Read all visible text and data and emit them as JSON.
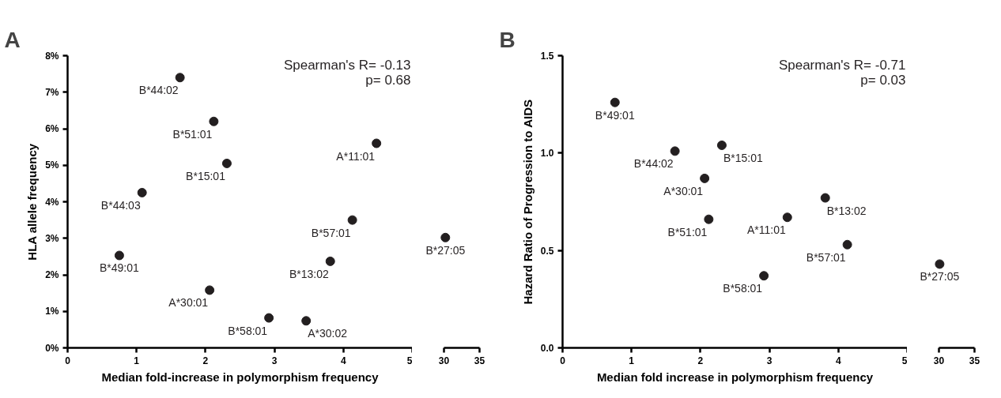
{
  "chart_data": [
    {
      "type": "scatter",
      "title": "A",
      "xlabel": "Median fold-increase in polymorphism frequency",
      "ylabel": "HLA allele frequency",
      "marker": "circle",
      "xlim": [
        0,
        5
      ],
      "ylim": [
        0,
        8
      ],
      "xticks": [
        0,
        1,
        2,
        3,
        4,
        5
      ],
      "yticks": [
        {
          "value": 0,
          "label": "0%"
        },
        {
          "value": 1,
          "label": "1%"
        },
        {
          "value": 2,
          "label": "2%"
        },
        {
          "value": 3,
          "label": "3%"
        },
        {
          "value": 4,
          "label": "4%"
        },
        {
          "value": 5,
          "label": "5%"
        },
        {
          "value": 6,
          "label": "6%"
        },
        {
          "value": 7,
          "label": "7%"
        },
        {
          "value": 8,
          "label": "8%"
        }
      ],
      "series": [
        {
          "color": "#231f20",
          "x": [
            1.63,
            2.12,
            2.31,
            4.48,
            1.08,
            4.13,
            0.75,
            3.81,
            2.06,
            2.92,
            3.46
          ],
          "values": [
            7.4,
            6.2,
            5.05,
            5.6,
            4.25,
            3.5,
            2.53,
            2.37,
            1.58,
            0.82,
            0.74
          ]
        }
      ],
      "annotations": [
        "Spearman's R= -0.13",
        "p= 0.68",
        {
          "text": "B*44:02",
          "x": 1.63,
          "y": 7.4
        },
        {
          "text": "B*51:01",
          "x": 2.12,
          "y": 6.2
        },
        {
          "text": "B*15:01",
          "x": 2.31,
          "y": 5.05
        },
        {
          "text": "A*11:01",
          "x": 4.48,
          "y": 5.6
        },
        {
          "text": "B*44:03",
          "x": 1.08,
          "y": 4.25
        },
        {
          "text": "B*57:01",
          "x": 4.13,
          "y": 3.5
        },
        {
          "text": "B*49:01",
          "x": 0.75,
          "y": 2.53
        },
        {
          "text": "B*13:02",
          "x": 3.81,
          "y": 2.37
        },
        {
          "text": "A*30:01",
          "x": 2.06,
          "y": 1.58
        },
        {
          "text": "B*58:01",
          "x": 2.92,
          "y": 0.82
        },
        {
          "text": "A*30:02",
          "x": 3.46,
          "y": 0.74
        }
      ]
    },
    {
      "type": "scatter",
      "tick_labels": "x",
      "marker": "circle",
      "xlim": [
        30,
        35
      ],
      "ylim": [
        0,
        8
      ],
      "xticks": [
        30,
        35
      ],
      "series": [
        {
          "color": "#231f20",
          "x": [
            30.2
          ],
          "values": [
            3.02
          ]
        }
      ],
      "annotations": [
        {
          "text": "B*27:05",
          "x": 30.2,
          "y": 3.02
        }
      ]
    },
    {
      "type": "scatter",
      "title": "B",
      "xlabel": "Median fold increase in polymorphism frequency",
      "ylabel": "Hazard Ratio of Progression to AIDS",
      "marker": "circle",
      "xlim": [
        0,
        5
      ],
      "ylim": [
        0,
        1.5
      ],
      "xticks": [
        0,
        1,
        2,
        3,
        4,
        5
      ],
      "yticks": [
        {
          "value": 0,
          "label": "0.0"
        },
        0.5,
        {
          "value": 1,
          "label": "1.0"
        },
        1.5
      ],
      "series": [
        {
          "color": "#231f20",
          "x": [
            0.76,
            1.63,
            2.31,
            2.06,
            3.81,
            2.12,
            3.26,
            4.13,
            2.92
          ],
          "values": [
            1.26,
            1.01,
            1.04,
            0.87,
            0.77,
            0.66,
            0.67,
            0.53,
            0.37
          ]
        }
      ],
      "annotations": [
        "Spearman's R= -0.71",
        "p= 0.03",
        {
          "text": "B*49:01",
          "x": 0.76,
          "y": 1.26
        },
        {
          "text": "B*44:02",
          "x": 1.63,
          "y": 1.01
        },
        {
          "text": "B*15:01",
          "x": 2.31,
          "y": 1.04
        },
        {
          "text": "A*30:01",
          "x": 2.06,
          "y": 0.87
        },
        {
          "text": "B*13:02",
          "x": 3.81,
          "y": 0.77
        },
        {
          "text": "B*51:01",
          "x": 2.12,
          "y": 0.66
        },
        {
          "text": "A*11:01",
          "x": 3.26,
          "y": 0.67
        },
        {
          "text": "B*57:01",
          "x": 4.13,
          "y": 0.53
        },
        {
          "text": "B*58:01",
          "x": 2.92,
          "y": 0.37
        }
      ]
    },
    {
      "type": "scatter",
      "tick_labels": "x",
      "marker": "circle",
      "xlim": [
        30,
        35
      ],
      "ylim": [
        0,
        1.5
      ],
      "xticks": [
        30,
        35
      ],
      "series": [
        {
          "color": "#231f20",
          "x": [
            30.1
          ],
          "values": [
            0.43
          ]
        }
      ],
      "annotations": [
        {
          "text": "B*27:05",
          "x": 30.1,
          "y": 0.43
        }
      ]
    }
  ]
}
